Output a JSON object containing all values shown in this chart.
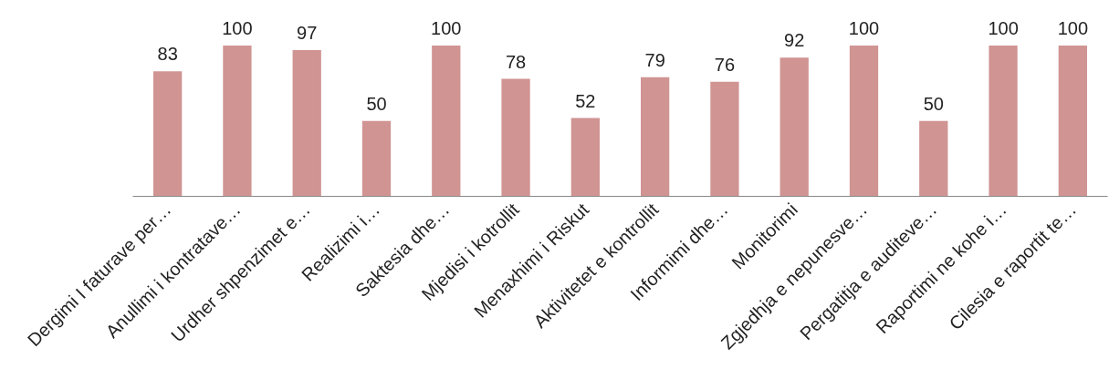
{
  "chart_data": {
    "type": "bar",
    "categories": [
      "Dergimi I faturave per…",
      "Anullimi i kontratave…",
      "Urdher shpenzimet e…",
      "Realizimi i…",
      "Saktesia dhe…",
      "Mjedisi i kotrollit",
      "Menaxhimi i Riskut",
      "Aktivitetet e kontrollit",
      "Informimi dhe…",
      "Monitorimi",
      "Zgjedhja e nepunesve…",
      "Pergatitja e auditeve…",
      "Raportimi ne kohe i…",
      "Cilesia e raportit te…"
    ],
    "values": [
      83,
      100,
      97,
      50,
      100,
      78,
      52,
      79,
      76,
      92,
      100,
      50,
      100,
      100
    ],
    "color": "#d09493",
    "tick_labels": "x",
    "data_labels": true
  }
}
